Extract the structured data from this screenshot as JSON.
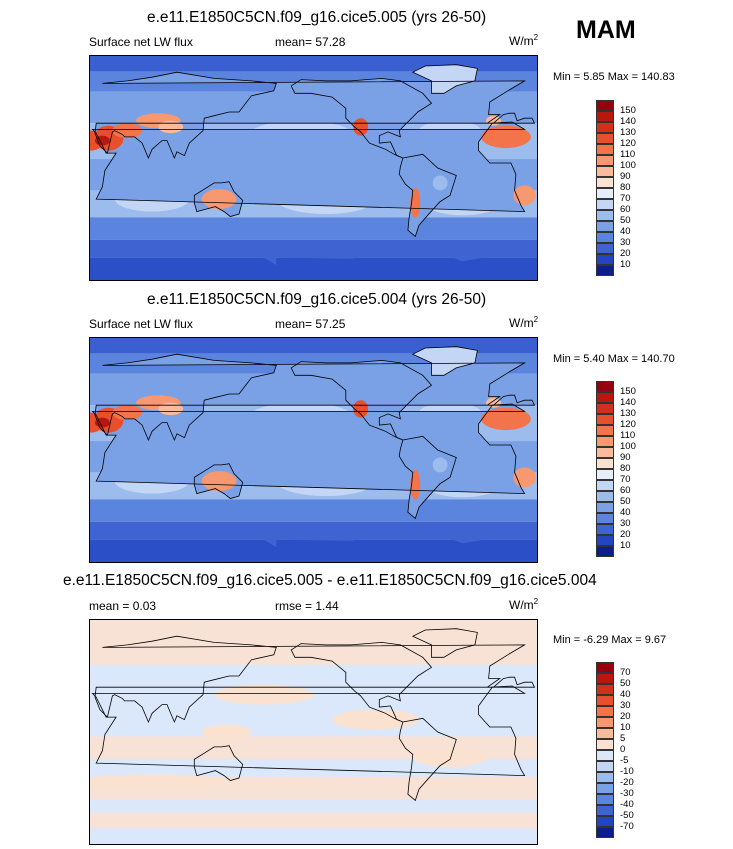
{
  "season": "MAM",
  "panels": [
    {
      "title": "e.e11.E1850C5CN.f09_g16.cice5.005 (yrs 26-50)",
      "left_label": "Surface net LW flux",
      "mid_label": "mean=  57.28",
      "units": "W/m",
      "units_sup": "2",
      "minmax": "Min =   5.85 Max = 140.83",
      "kind": "field"
    },
    {
      "title": "e.e11.E1850C5CN.f09_g16.cice5.004 (yrs 26-50)",
      "left_label": "Surface net LW flux",
      "mid_label": "mean=  57.25",
      "units": "W/m",
      "units_sup": "2",
      "minmax": "Min =   5.40 Max = 140.70",
      "kind": "field"
    },
    {
      "title": "e.e11.E1850C5CN.f09_g16.cice5.005 - e.e11.E1850C5CN.f09_g16.cice5.004",
      "left_label": "mean =   0.03",
      "mid_label": "rmse =   1.44",
      "units": "W/m",
      "units_sup": "2",
      "minmax": "Min =  -6.29 Max =   9.67",
      "kind": "diff"
    }
  ],
  "chart_data": [
    {
      "type": "heatmap",
      "title": "e.e11.E1850C5CN.f09_g16.cice5.005 (yrs 26-50)",
      "variable": "Surface net LW flux",
      "units": "W/m2",
      "mean": 57.28,
      "min": 5.85,
      "max": 140.83,
      "colorbar_levels": [
        150,
        140,
        130,
        120,
        110,
        100,
        90,
        80,
        70,
        60,
        50,
        40,
        30,
        20,
        10
      ],
      "colorbar_colors": [
        "#99000d",
        "#b8170f",
        "#d3301c",
        "#e8502d",
        "#f3744a",
        "#f79870",
        "#f9bb9b",
        "#fbe1d0",
        "#e6eefb",
        "#c4d6f5",
        "#9cbcee",
        "#7aa1e6",
        "#5b84de",
        "#3f64d2",
        "#2345c0",
        "#0a1f8a"
      ]
    },
    {
      "type": "heatmap",
      "title": "e.e11.E1850C5CN.f09_g16.cice5.004 (yrs 26-50)",
      "variable": "Surface net LW flux",
      "units": "W/m2",
      "mean": 57.25,
      "min": 5.4,
      "max": 140.7,
      "colorbar_levels": [
        150,
        140,
        130,
        120,
        110,
        100,
        90,
        80,
        70,
        60,
        50,
        40,
        30,
        20,
        10
      ],
      "colorbar_colors": [
        "#99000d",
        "#b8170f",
        "#d3301c",
        "#e8502d",
        "#f3744a",
        "#f79870",
        "#f9bb9b",
        "#fbe1d0",
        "#e6eefb",
        "#c4d6f5",
        "#9cbcee",
        "#7aa1e6",
        "#5b84de",
        "#3f64d2",
        "#2345c0",
        "#0a1f8a"
      ]
    },
    {
      "type": "heatmap",
      "title": "e.e11.E1850C5CN.f09_g16.cice5.005 - e.e11.E1850C5CN.f09_g16.cice5.004",
      "units": "W/m2",
      "mean": 0.03,
      "rmse": 1.44,
      "min": -6.29,
      "max": 9.67,
      "colorbar_levels": [
        70,
        50,
        40,
        30,
        20,
        10,
        5,
        0,
        -5,
        -10,
        -20,
        -30,
        -40,
        -50,
        -70
      ],
      "colorbar_colors": [
        "#99000d",
        "#b8170f",
        "#d3301c",
        "#e8502d",
        "#f3744a",
        "#f79870",
        "#f9bb9b",
        "#fbe1d0",
        "#dbe8fb",
        "#c4d6f5",
        "#9cbcee",
        "#7aa1e6",
        "#5b84de",
        "#3f64d2",
        "#2345c0",
        "#0a1f8a"
      ]
    }
  ]
}
